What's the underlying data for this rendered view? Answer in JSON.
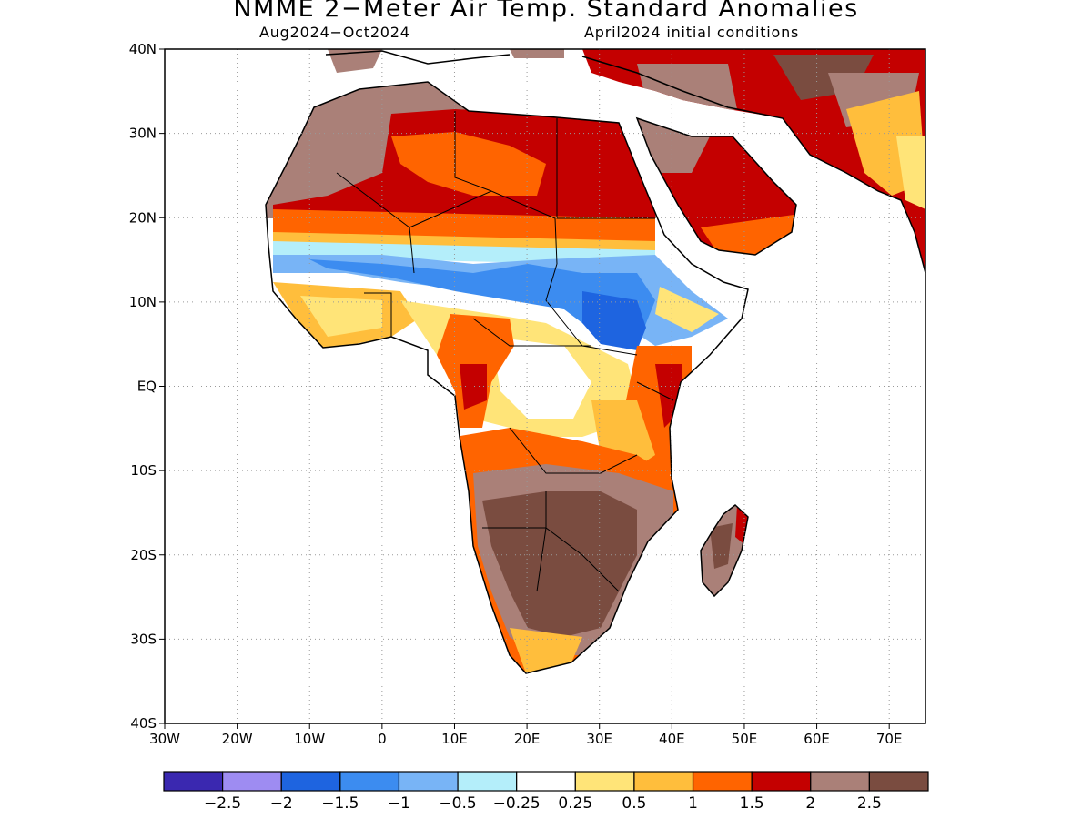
{
  "title": "NMME 2−Meter Air Temp. Standard Anomalies",
  "subtitle_left": "Aug2024−Oct2024",
  "subtitle_right": "April2024 initial conditions",
  "map": {
    "lon_range": [
      -30,
      75
    ],
    "lat_range": [
      -40,
      40
    ],
    "lon_ticks": [
      {
        "value": -30,
        "label": "30W"
      },
      {
        "value": -20,
        "label": "20W"
      },
      {
        "value": -10,
        "label": "10W"
      },
      {
        "value": 0,
        "label": "0"
      },
      {
        "value": 10,
        "label": "10E"
      },
      {
        "value": 20,
        "label": "20E"
      },
      {
        "value": 30,
        "label": "30E"
      },
      {
        "value": 40,
        "label": "40E"
      },
      {
        "value": 50,
        "label": "50E"
      },
      {
        "value": 60,
        "label": "60E"
      },
      {
        "value": 70,
        "label": "70E"
      }
    ],
    "lat_ticks": [
      {
        "value": 40,
        "label": "40N"
      },
      {
        "value": 30,
        "label": "30N"
      },
      {
        "value": 20,
        "label": "20N"
      },
      {
        "value": 10,
        "label": "10N"
      },
      {
        "value": 0,
        "label": "EQ"
      },
      {
        "value": -10,
        "label": "10S"
      },
      {
        "value": -20,
        "label": "20S"
      },
      {
        "value": -30,
        "label": "30S"
      },
      {
        "value": -40,
        "label": "40S"
      }
    ],
    "gridlines": "dotted"
  },
  "colorbar": {
    "colors": [
      "#3a28b0",
      "#9e8cf2",
      "#1e64e0",
      "#3c8cf0",
      "#78b4f6",
      "#b4eefa",
      "#ffffff",
      "#ffe478",
      "#ffbe3c",
      "#ff6400",
      "#c40000",
      "#aa8078",
      "#7a4c40"
    ],
    "labels": [
      "−2.5",
      "−2",
      "−1.5",
      "−1",
      "−0.5",
      "−0.25",
      "0.25",
      "0.5",
      "1",
      "1.5",
      "2",
      "2.5"
    ]
  }
}
